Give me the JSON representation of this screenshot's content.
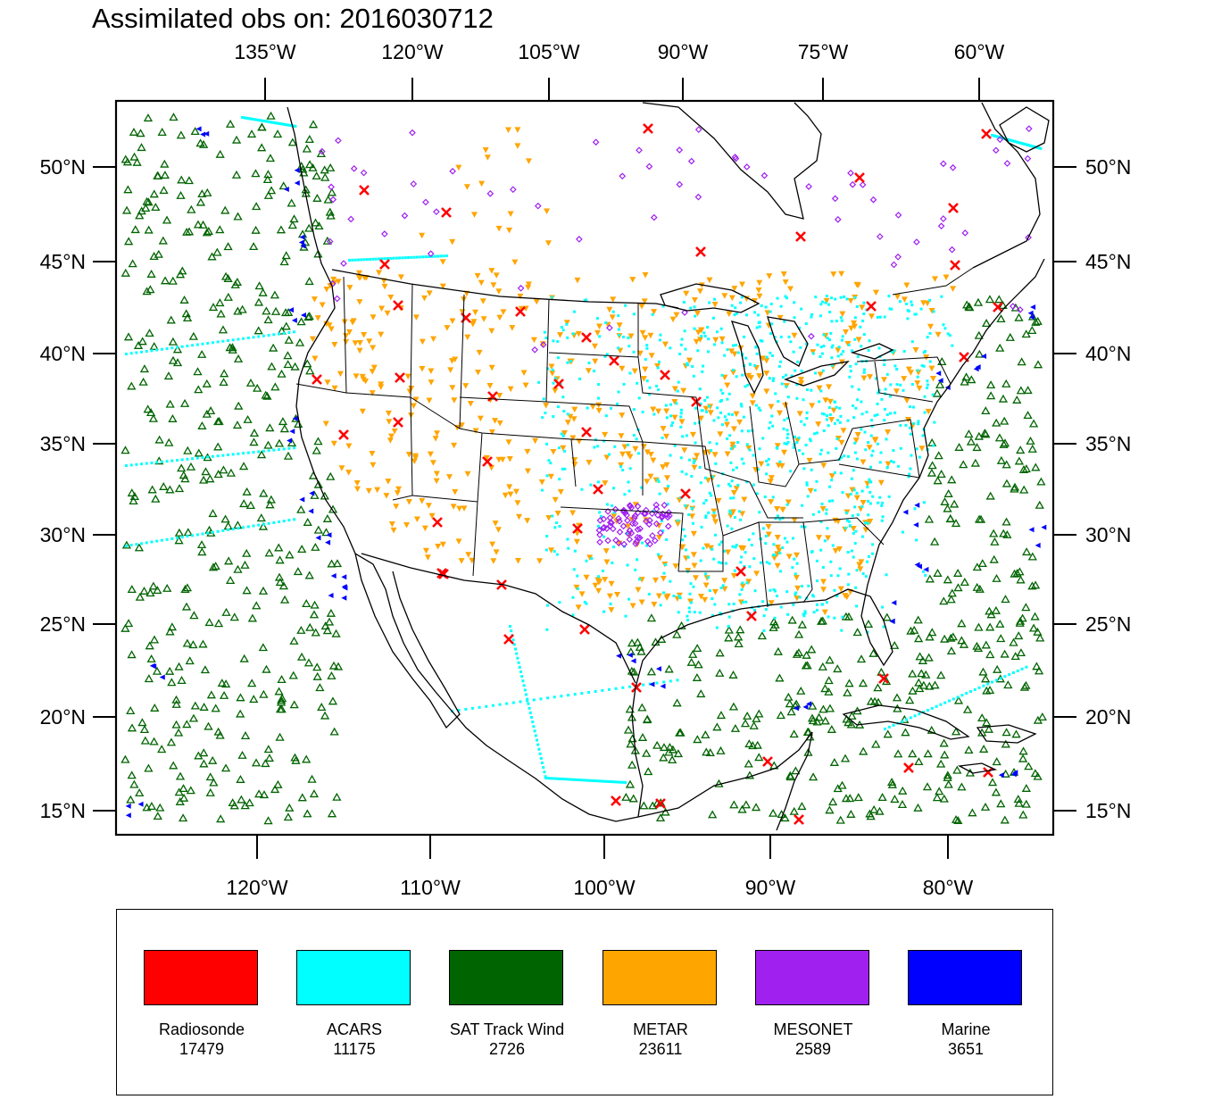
{
  "title": "Assimilated obs on: 2016030712",
  "axes": {
    "top_lon_labels": [
      "135°W",
      "120°W",
      "105°W",
      "90°W",
      "75°W",
      "60°W"
    ],
    "bottom_lon_labels": [
      "120°W",
      "110°W",
      "100°W",
      "90°W",
      "80°W"
    ],
    "lat_labels": [
      "50°N",
      "45°N",
      "40°N",
      "35°N",
      "30°N",
      "25°N",
      "20°N",
      "15°N"
    ]
  },
  "legend": [
    {
      "label": "Radiosonde",
      "count": "17479",
      "color": "#ff0000"
    },
    {
      "label": "ACARS",
      "count": "11175",
      "color": "#00ffff"
    },
    {
      "label": "SAT Track Wind",
      "count": "2726",
      "color": "#006400"
    },
    {
      "label": "METAR",
      "count": "23611",
      "color": "#ffa500"
    },
    {
      "label": "MESONET",
      "count": "2589",
      "color": "#a020f0"
    },
    {
      "label": "Marine",
      "count": "3651",
      "color": "#0000ff"
    }
  ]
}
